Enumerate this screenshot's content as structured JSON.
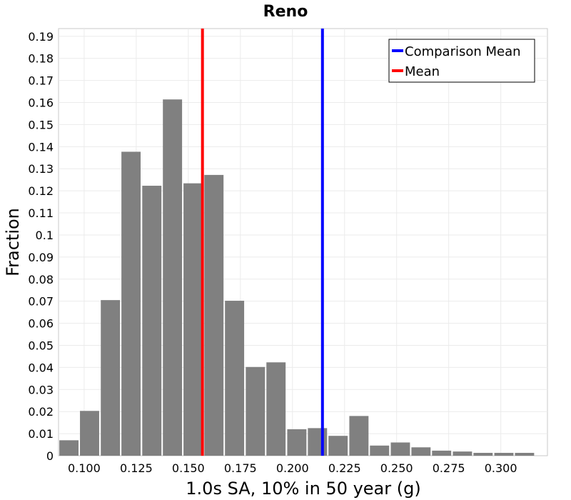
{
  "chart_data": {
    "type": "bar",
    "title": "Reno",
    "xlabel": "1.0s SA, 10% in 50 year (g)",
    "ylabel": "Fraction",
    "xlim": [
      0.0877,
      0.3224
    ],
    "ylim": [
      0,
      0.1935
    ],
    "bin_width": 0.0099,
    "bins": [
      {
        "x": 0.0927,
        "value": 0.007
      },
      {
        "x": 0.1026,
        "value": 0.0203
      },
      {
        "x": 0.1126,
        "value": 0.0705
      },
      {
        "x": 0.1225,
        "value": 0.1377
      },
      {
        "x": 0.1325,
        "value": 0.1223
      },
      {
        "x": 0.1424,
        "value": 0.1614
      },
      {
        "x": 0.1523,
        "value": 0.1234
      },
      {
        "x": 0.1623,
        "value": 0.1272
      },
      {
        "x": 0.1722,
        "value": 0.0702
      },
      {
        "x": 0.1822,
        "value": 0.0402
      },
      {
        "x": 0.1921,
        "value": 0.0423
      },
      {
        "x": 0.2021,
        "value": 0.012
      },
      {
        "x": 0.212,
        "value": 0.0125
      },
      {
        "x": 0.2219,
        "value": 0.009
      },
      {
        "x": 0.2319,
        "value": 0.018
      },
      {
        "x": 0.2418,
        "value": 0.0046
      },
      {
        "x": 0.2518,
        "value": 0.006
      },
      {
        "x": 0.2617,
        "value": 0.0038
      },
      {
        "x": 0.2716,
        "value": 0.0023
      },
      {
        "x": 0.2816,
        "value": 0.0019
      },
      {
        "x": 0.2915,
        "value": 0.0013
      },
      {
        "x": 0.3015,
        "value": 0.0013
      },
      {
        "x": 0.3114,
        "value": 0.0013
      }
    ],
    "vlines": [
      {
        "name": "Comparison Mean",
        "x": 0.2144,
        "color": "#0000ff"
      },
      {
        "name": "Mean",
        "x": 0.1568,
        "color": "#ff0000"
      }
    ],
    "bar_color": "#808080",
    "xticks": [
      0.1,
      0.125,
      0.15,
      0.175,
      0.2,
      0.225,
      0.25,
      0.275,
      0.3
    ],
    "xtick_labels": [
      "0.100",
      "0.125",
      "0.150",
      "0.175",
      "0.200",
      "0.225",
      "0.250",
      "0.275",
      "0.300"
    ],
    "yticks": [
      0,
      0.01,
      0.02,
      0.03,
      0.04,
      0.05,
      0.06,
      0.07,
      0.08,
      0.09,
      0.1,
      0.11,
      0.12,
      0.13,
      0.14,
      0.15,
      0.16,
      0.17,
      0.18,
      0.19
    ],
    "ytick_labels": [
      "0",
      "0.01",
      "0.02",
      "0.03",
      "0.04",
      "0.05",
      "0.06",
      "0.07",
      "0.08",
      "0.09",
      "0.1",
      "0.11",
      "0.12",
      "0.13",
      "0.14",
      "0.15",
      "0.16",
      "0.17",
      "0.18",
      "0.19"
    ],
    "grid": true,
    "legend": {
      "position": "top-right",
      "entries": [
        "Comparison Mean",
        "Mean"
      ]
    }
  }
}
